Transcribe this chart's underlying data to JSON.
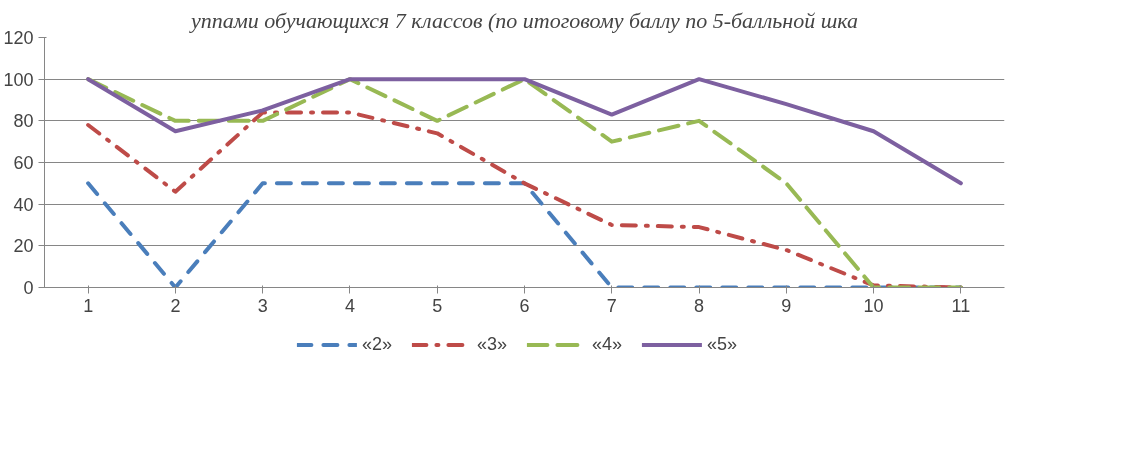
{
  "chart_data": {
    "type": "line",
    "title": "уппами обучающихся 7 классов (по итоговому баллу по 5-балльной шка",
    "categories": [
      "1",
      "2",
      "3",
      "4",
      "5",
      "6",
      "7",
      "8",
      "9",
      "10",
      "11"
    ],
    "series": [
      {
        "name": "«2»",
        "color": "#4a7ebb",
        "line_style": "dashed",
        "values": [
          50,
          0,
          50,
          50,
          50,
          50,
          0,
          0,
          0,
          0,
          0
        ]
      },
      {
        "name": "«3»",
        "color": "#be4b48",
        "line_style": "dashdot",
        "values": [
          78,
          46,
          84,
          84,
          74,
          50,
          30,
          29,
          18,
          1,
          0
        ]
      },
      {
        "name": "«4»",
        "color": "#98b954",
        "line_style": "longdash",
        "values": [
          100,
          80,
          80,
          100,
          80,
          100,
          70,
          80,
          50,
          0,
          0
        ]
      },
      {
        "name": "«5»",
        "color": "#7d60a0",
        "line_style": "solid",
        "values": [
          100,
          75,
          85,
          100,
          100,
          100,
          83,
          100,
          88,
          75,
          50
        ]
      }
    ],
    "ylim": [
      0,
      120
    ],
    "yticks": [
      0,
      20,
      40,
      60,
      80,
      100,
      120
    ],
    "grid": "y",
    "legend": "bottom",
    "marker": "none"
  }
}
